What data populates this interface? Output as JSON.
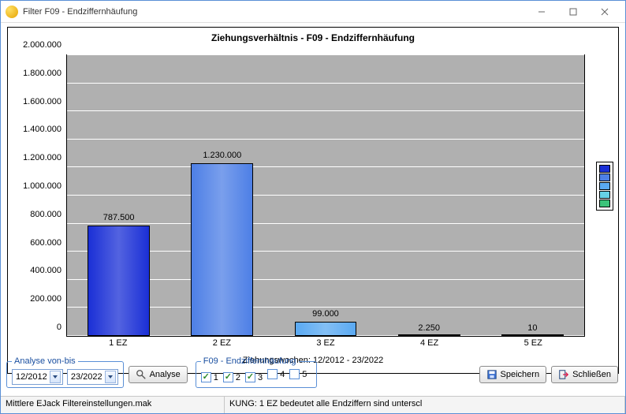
{
  "window": {
    "title": "Filter F09 - Endziffernhäufung"
  },
  "chart": {
    "type": "bar",
    "title": "Ziehungsverhältnis  - F09 -  Endziffernhäufung",
    "x_caption": "Ziehungswochen: 12/2012  - 23/2022",
    "background_color": "#b0b0b0",
    "grid_color": "#ffffff",
    "ylim": [
      0,
      2000000
    ],
    "ytick_step": 200000,
    "y_labels": [
      "0",
      "200.000",
      "400.000",
      "600.000",
      "800.000",
      "1.000.000",
      "1.200.000",
      "1.400.000",
      "1.600.000",
      "1.800.000",
      "2.000.000"
    ],
    "categories": [
      "1 EZ",
      "2 EZ",
      "3 EZ",
      "4 EZ",
      "5 EZ"
    ],
    "values": [
      787500,
      1230000,
      99000,
      2250,
      10
    ],
    "value_labels": [
      "787.500",
      "1.230.000",
      "99.000",
      "2.250",
      "10"
    ],
    "bar_colors": [
      "#1a2fd6",
      "#4d7fe6",
      "#5aa9f2",
      "#66d1e6",
      "#3cc47a"
    ],
    "bar_width_rel": 0.6,
    "legend_colors": [
      "#1a2fd6",
      "#4d7fe6",
      "#5aa9f2",
      "#66d1e6",
      "#3cc47a"
    ]
  },
  "analyse": {
    "legend": "Analyse von-bis",
    "from": "12/2012",
    "to": "23/2022",
    "analyse_label": "Analyse"
  },
  "filter": {
    "legend": "F09 - Endziffernhäufung",
    "options": [
      {
        "label": "1",
        "checked": true
      },
      {
        "label": "2",
        "checked": true
      },
      {
        "label": "3",
        "checked": true
      },
      {
        "label": "4",
        "checked": false
      },
      {
        "label": "5",
        "checked": false
      }
    ]
  },
  "buttons": {
    "save": "Speichern",
    "close": "Schließen"
  },
  "statusbar": {
    "left": "Mittlere EJack Filtereinstellungen.mak",
    "right": "KUNG: 1 EZ bedeutet alle Endziffern sind unterscl"
  }
}
